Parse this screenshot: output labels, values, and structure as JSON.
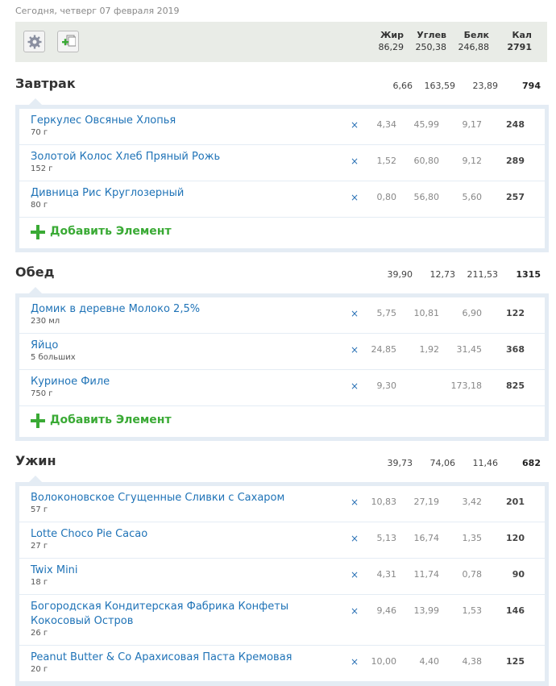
{
  "date": "Сегодня, четверг 07 февраля 2019",
  "toolbar": {
    "settings_icon": "gear-icon",
    "add_icon": "add-copy-icon"
  },
  "header": {
    "fat_label": "Жир",
    "fat": "86,29",
    "carbs_label": "Углев",
    "carbs": "250,38",
    "protein_label": "Белк",
    "protein": "246,88",
    "cal_label": "Кал",
    "cal": "2791"
  },
  "add_item_label": "Добавить Элемент",
  "remove_glyph": "×",
  "meals": [
    {
      "title": "Завтрак",
      "fat": "6,66",
      "carbs": "163,59",
      "protein": "23,89",
      "cal": "794",
      "items": [
        {
          "name": "Геркулес Овсяные Хлопья",
          "amount": "70 г",
          "fat": "4,34",
          "carbs": "45,99",
          "protein": "9,17",
          "cal": "248"
        },
        {
          "name": "Золотой Колос Хлеб Пряный Рожь",
          "amount": "152 г",
          "fat": "1,52",
          "carbs": "60,80",
          "protein": "9,12",
          "cal": "289"
        },
        {
          "name": "Дивница Рис Круглозерный",
          "amount": "80 г",
          "fat": "0,80",
          "carbs": "56,80",
          "protein": "5,60",
          "cal": "257"
        }
      ]
    },
    {
      "title": "Обед",
      "fat": "39,90",
      "carbs": "12,73",
      "protein": "211,53",
      "cal": "1315",
      "items": [
        {
          "name": "Домик в деревне Молоко 2,5%",
          "amount": "230 мл",
          "fat": "5,75",
          "carbs": "10,81",
          "protein": "6,90",
          "cal": "122"
        },
        {
          "name": "Яйцо",
          "amount": "5 больших",
          "fat": "24,85",
          "carbs": "1,92",
          "protein": "31,45",
          "cal": "368"
        },
        {
          "name": "Куриное Филе",
          "amount": "750 г",
          "fat": "9,30",
          "carbs": "",
          "protein": "173,18",
          "cal": "825"
        }
      ]
    },
    {
      "title": "Ужин",
      "fat": "39,73",
      "carbs": "74,06",
      "protein": "11,46",
      "cal": "682",
      "items": [
        {
          "name": "Волоконовское Сгущенные Сливки с Сахаром",
          "amount": "57 г",
          "fat": "10,83",
          "carbs": "27,19",
          "protein": "3,42",
          "cal": "201"
        },
        {
          "name": "Lotte Choco Pie Cacao",
          "amount": "27 г",
          "fat": "5,13",
          "carbs": "16,74",
          "protein": "1,35",
          "cal": "120"
        },
        {
          "name": "Twix Mini",
          "amount": "18 г",
          "fat": "4,31",
          "carbs": "11,74",
          "protein": "0,78",
          "cal": "90"
        },
        {
          "name": "Богородская Кондитерская Фабрика Конфеты Кокосовый Остров",
          "amount": "26 г",
          "fat": "9,46",
          "carbs": "13,99",
          "protein": "1,53",
          "cal": "146"
        },
        {
          "name": "Peanut Butter & Co Арахисовая Паста Кремовая",
          "amount": "20 г",
          "fat": "10,00",
          "carbs": "4,40",
          "protein": "4,38",
          "cal": "125"
        }
      ]
    }
  ]
}
